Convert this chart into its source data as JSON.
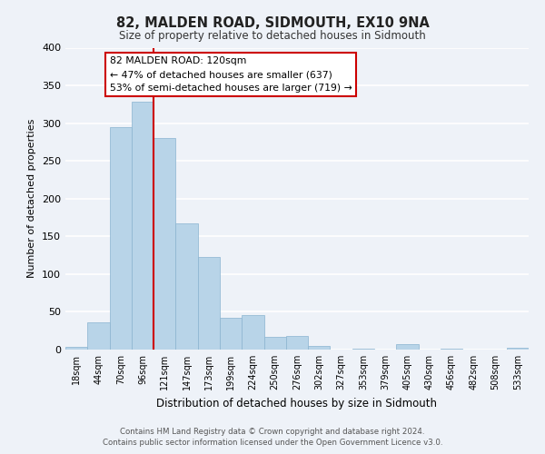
{
  "title": "82, MALDEN ROAD, SIDMOUTH, EX10 9NA",
  "subtitle": "Size of property relative to detached houses in Sidmouth",
  "xlabel": "Distribution of detached houses by size in Sidmouth",
  "ylabel": "Number of detached properties",
  "bin_labels": [
    "18sqm",
    "44sqm",
    "70sqm",
    "96sqm",
    "121sqm",
    "147sqm",
    "173sqm",
    "199sqm",
    "224sqm",
    "250sqm",
    "276sqm",
    "302sqm",
    "327sqm",
    "353sqm",
    "379sqm",
    "405sqm",
    "430sqm",
    "456sqm",
    "482sqm",
    "508sqm",
    "533sqm"
  ],
  "bar_heights": [
    4,
    36,
    295,
    328,
    280,
    167,
    123,
    42,
    46,
    17,
    18,
    5,
    0,
    1,
    0,
    7,
    0,
    1,
    0,
    0,
    2
  ],
  "bar_color": "#b8d4e8",
  "bar_edge_color": "#8ab4d0",
  "line_color": "#cc0000",
  "box_color": "#ffffff",
  "box_edge_color": "#cc0000",
  "property_line_label": "82 MALDEN ROAD: 120sqm",
  "annotation_line1": "← 47% of detached houses are smaller (637)",
  "annotation_line2": "53% of semi-detached houses are larger (719) →",
  "ylim": [
    0,
    400
  ],
  "yticks": [
    0,
    50,
    100,
    150,
    200,
    250,
    300,
    350,
    400
  ],
  "footer1": "Contains HM Land Registry data © Crown copyright and database right 2024.",
  "footer2": "Contains public sector information licensed under the Open Government Licence v3.0.",
  "bg_color": "#eef2f8",
  "grid_color": "#ffffff",
  "property_line_bar_index": 3.5
}
